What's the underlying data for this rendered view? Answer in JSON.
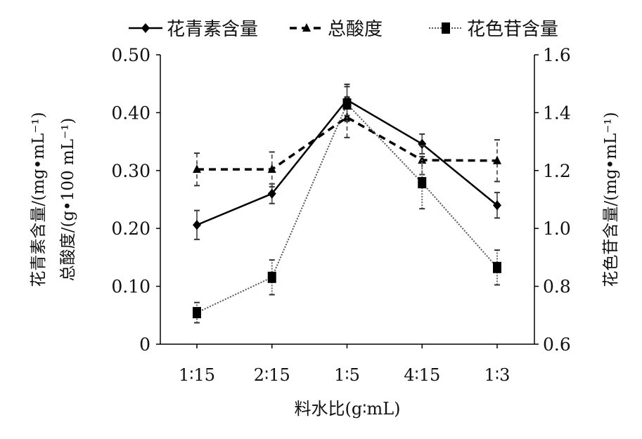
{
  "chart_data": {
    "type": "line",
    "categories": [
      "1∶15",
      "2∶15",
      "1∶5",
      "4∶15",
      "1∶3"
    ],
    "xlabel": "料水比(g∶mL)",
    "ylabel_left_1": "花青素含量/(mg•mL⁻¹)",
    "ylabel_left_2": "总酸度/(g•100 mL⁻¹)",
    "ylabel_right": "花色苷含量/(mg•mL⁻¹)",
    "ylim_left": [
      0,
      0.5
    ],
    "ylim_right": [
      0.6,
      1.6
    ],
    "yticks_left": [
      "0",
      "0.10",
      "0.20",
      "0.30",
      "0.40",
      "0.50"
    ],
    "yticks_right": [
      "0.6",
      "0.8",
      "1.0",
      "1.2",
      "1.4",
      "1.6"
    ],
    "legend_position": "top",
    "series": [
      {
        "name": "花青素含量",
        "axis": "left",
        "style": "solid",
        "marker": "diamond",
        "values": [
          0.206,
          0.26,
          0.422,
          0.346,
          0.24
        ],
        "errors": [
          0.025,
          0.017,
          0.027,
          0.017,
          0.022
        ]
      },
      {
        "name": "总酸度",
        "axis": "left",
        "style": "dashed",
        "marker": "triangle",
        "values": [
          0.302,
          0.302,
          0.392,
          0.318,
          0.317
        ],
        "errors": [
          0.028,
          0.03,
          0.035,
          0.025,
          0.036
        ]
      },
      {
        "name": "花色苷含量",
        "axis": "right",
        "style": "dotted",
        "marker": "square",
        "values": [
          0.709,
          0.831,
          1.43,
          1.158,
          0.865
        ],
        "errors": [
          0.035,
          0.06,
          0.06,
          0.09,
          0.06
        ]
      }
    ]
  }
}
